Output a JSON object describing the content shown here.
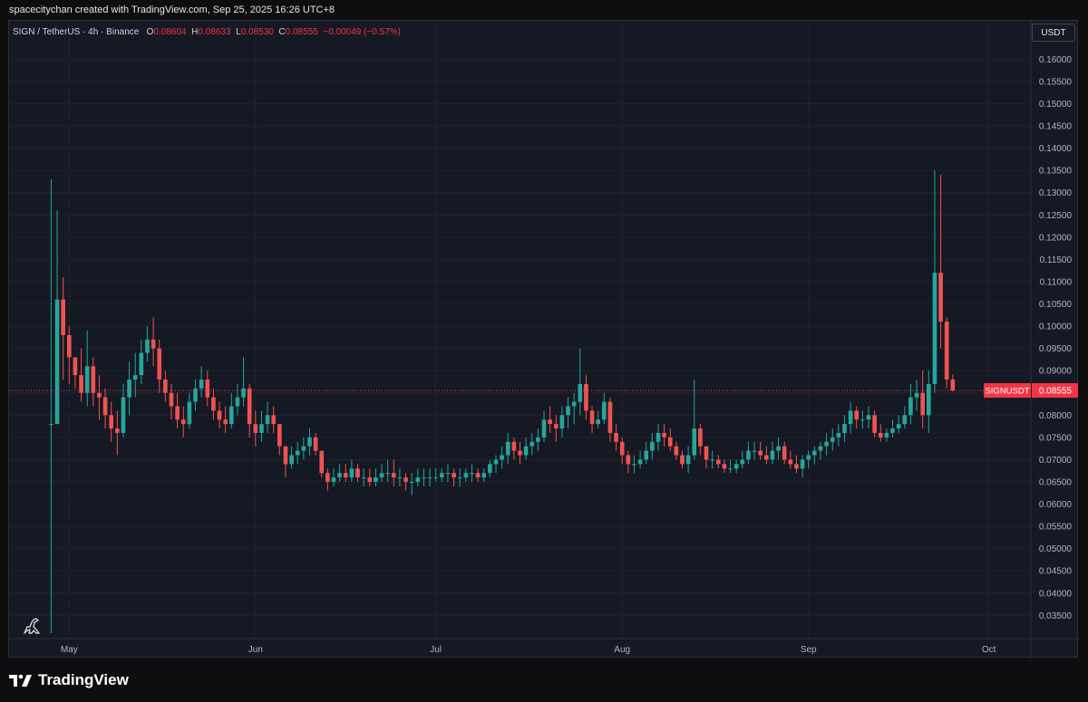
{
  "caption": "spacecitychan created with TradingView.com, Sep 25, 2025 16:26 UTC+8",
  "legend": {
    "symbol": "SIGN / TetherUS · 4h · Binance",
    "o_label": "O",
    "o_value": "0.08604",
    "h_label": "H",
    "h_value": "0.08633",
    "l_label": "L",
    "l_value": "0.08530",
    "c_label": "C",
    "c_value": "0.08555",
    "change": "−0.00049 (−0.57%)"
  },
  "currency_button": "USDT",
  "price_label": {
    "symbol": "SIGNUSDT",
    "value": "0.08555"
  },
  "brand": "TradingView",
  "colors": {
    "up": "#26a69a",
    "down": "#ef5350",
    "background": "#151924",
    "grid": "#1e222d",
    "last_price": "#f23645"
  },
  "chart_data": {
    "type": "candlestick",
    "symbol": "SIGNUSDT",
    "interval": "4h",
    "y_scale": "linear",
    "ylim": [
      0.031,
      0.167
    ],
    "y_ticks": [
      "0.16000",
      "0.15500",
      "0.15000",
      "0.14500",
      "0.14000",
      "0.13500",
      "0.13000",
      "0.12500",
      "0.12000",
      "0.11500",
      "0.11000",
      "0.10500",
      "0.10000",
      "0.09500",
      "0.09000",
      "0.08500",
      "0.08000",
      "0.07500",
      "0.07000",
      "0.06500",
      "0.06000",
      "0.05500",
      "0.05000",
      "0.04500",
      "0.04000",
      "0.03500"
    ],
    "x_ticks": [
      {
        "label": "May",
        "date": "2025-05-01"
      },
      {
        "label": "Jun",
        "date": "2025-06-01"
      },
      {
        "label": "Jul",
        "date": "2025-07-01"
      },
      {
        "label": "Aug",
        "date": "2025-08-01"
      },
      {
        "label": "Sep",
        "date": "2025-09-01"
      },
      {
        "label": "Oct",
        "date": "2025-10-01"
      }
    ],
    "xlim": [
      "2025-04-21",
      "2025-10-08"
    ],
    "last_price": 0.08555,
    "grid": true,
    "series": [
      {
        "date": "2025-04-28",
        "low": 0.031,
        "high": 0.133,
        "close": 0.078
      },
      {
        "date": "2025-04-29",
        "low": 0.085,
        "high": 0.126,
        "close": 0.106
      },
      {
        "date": "2025-04-30",
        "low": 0.088,
        "high": 0.111,
        "close": 0.098
      },
      {
        "date": "2025-05-01",
        "low": 0.087,
        "high": 0.1,
        "close": 0.093
      },
      {
        "date": "2025-05-02",
        "low": 0.086,
        "high": 0.093,
        "close": 0.089
      },
      {
        "date": "2025-05-03",
        "low": 0.083,
        "high": 0.095,
        "close": 0.085
      },
      {
        "date": "2025-05-04",
        "low": 0.082,
        "high": 0.099,
        "close": 0.091
      },
      {
        "date": "2025-05-05",
        "low": 0.082,
        "high": 0.093,
        "close": 0.085
      },
      {
        "date": "2025-05-06",
        "low": 0.079,
        "high": 0.089,
        "close": 0.084
      },
      {
        "date": "2025-05-07",
        "low": 0.077,
        "high": 0.086,
        "close": 0.08
      },
      {
        "date": "2025-05-08",
        "low": 0.074,
        "high": 0.083,
        "close": 0.077
      },
      {
        "date": "2025-05-09",
        "low": 0.071,
        "high": 0.081,
        "close": 0.076
      },
      {
        "date": "2025-05-10",
        "low": 0.075,
        "high": 0.087,
        "close": 0.084
      },
      {
        "date": "2025-05-11",
        "low": 0.08,
        "high": 0.092,
        "close": 0.088
      },
      {
        "date": "2025-05-12",
        "low": 0.084,
        "high": 0.094,
        "close": 0.089
      },
      {
        "date": "2025-05-13",
        "low": 0.087,
        "high": 0.097,
        "close": 0.094
      },
      {
        "date": "2025-05-14",
        "low": 0.092,
        "high": 0.1,
        "close": 0.097
      },
      {
        "date": "2025-05-15",
        "low": 0.091,
        "high": 0.102,
        "close": 0.095
      },
      {
        "date": "2025-05-16",
        "low": 0.085,
        "high": 0.097,
        "close": 0.088
      },
      {
        "date": "2025-05-17",
        "low": 0.083,
        "high": 0.09,
        "close": 0.085
      },
      {
        "date": "2025-05-18",
        "low": 0.079,
        "high": 0.087,
        "close": 0.082
      },
      {
        "date": "2025-05-19",
        "low": 0.077,
        "high": 0.085,
        "close": 0.079
      },
      {
        "date": "2025-05-20",
        "low": 0.075,
        "high": 0.082,
        "close": 0.078
      },
      {
        "date": "2025-05-21",
        "low": 0.077,
        "high": 0.085,
        "close": 0.083
      },
      {
        "date": "2025-05-22",
        "low": 0.081,
        "high": 0.088,
        "close": 0.086
      },
      {
        "date": "2025-05-23",
        "low": 0.084,
        "high": 0.091,
        "close": 0.088
      },
      {
        "date": "2025-05-24",
        "low": 0.082,
        "high": 0.09,
        "close": 0.084
      },
      {
        "date": "2025-05-25",
        "low": 0.079,
        "high": 0.086,
        "close": 0.081
      },
      {
        "date": "2025-05-26",
        "low": 0.077,
        "high": 0.083,
        "close": 0.079
      },
      {
        "date": "2025-05-27",
        "low": 0.076,
        "high": 0.082,
        "close": 0.078
      },
      {
        "date": "2025-05-28",
        "low": 0.077,
        "high": 0.085,
        "close": 0.082
      },
      {
        "date": "2025-05-29",
        "low": 0.08,
        "high": 0.087,
        "close": 0.084
      },
      {
        "date": "2025-05-30",
        "low": 0.082,
        "high": 0.093,
        "close": 0.086
      },
      {
        "date": "2025-05-31",
        "low": 0.075,
        "high": 0.087,
        "close": 0.078
      },
      {
        "date": "2025-06-01",
        "low": 0.073,
        "high": 0.081,
        "close": 0.076
      },
      {
        "date": "2025-06-02",
        "low": 0.074,
        "high": 0.081,
        "close": 0.078
      },
      {
        "date": "2025-06-03",
        "low": 0.076,
        "high": 0.083,
        "close": 0.08
      },
      {
        "date": "2025-06-04",
        "low": 0.076,
        "high": 0.082,
        "close": 0.078
      },
      {
        "date": "2025-06-05",
        "low": 0.071,
        "high": 0.078,
        "close": 0.073
      },
      {
        "date": "2025-06-06",
        "low": 0.066,
        "high": 0.073,
        "close": 0.069
      },
      {
        "date": "2025-06-07",
        "low": 0.068,
        "high": 0.073,
        "close": 0.071
      },
      {
        "date": "2025-06-08",
        "low": 0.069,
        "high": 0.074,
        "close": 0.072
      },
      {
        "date": "2025-06-09",
        "low": 0.07,
        "high": 0.075,
        "close": 0.073
      },
      {
        "date": "2025-06-10",
        "low": 0.071,
        "high": 0.077,
        "close": 0.075
      },
      {
        "date": "2025-06-11",
        "low": 0.071,
        "high": 0.076,
        "close": 0.072
      },
      {
        "date": "2025-06-12",
        "low": 0.066,
        "high": 0.072,
        "close": 0.067
      },
      {
        "date": "2025-06-13",
        "low": 0.063,
        "high": 0.068,
        "close": 0.065
      },
      {
        "date": "2025-06-14",
        "low": 0.064,
        "high": 0.068,
        "close": 0.066
      },
      {
        "date": "2025-06-15",
        "low": 0.065,
        "high": 0.069,
        "close": 0.067
      },
      {
        "date": "2025-06-16",
        "low": 0.065,
        "high": 0.069,
        "close": 0.066
      },
      {
        "date": "2025-06-17",
        "low": 0.065,
        "high": 0.07,
        "close": 0.068
      },
      {
        "date": "2025-06-18",
        "low": 0.065,
        "high": 0.069,
        "close": 0.066
      },
      {
        "date": "2025-06-19",
        "low": 0.064,
        "high": 0.068,
        "close": 0.066
      },
      {
        "date": "2025-06-20",
        "low": 0.064,
        "high": 0.068,
        "close": 0.065
      },
      {
        "date": "2025-06-21",
        "low": 0.064,
        "high": 0.068,
        "close": 0.066
      },
      {
        "date": "2025-06-22",
        "low": 0.065,
        "high": 0.069,
        "close": 0.067
      },
      {
        "date": "2025-06-23",
        "low": 0.065,
        "high": 0.07,
        "close": 0.067
      },
      {
        "date": "2025-06-24",
        "low": 0.064,
        "high": 0.07,
        "close": 0.066
      },
      {
        "date": "2025-06-25",
        "low": 0.064,
        "high": 0.068,
        "close": 0.066
      },
      {
        "date": "2025-06-26",
        "low": 0.063,
        "high": 0.067,
        "close": 0.065
      },
      {
        "date": "2025-06-27",
        "low": 0.062,
        "high": 0.067,
        "close": 0.065
      },
      {
        "date": "2025-06-28",
        "low": 0.064,
        "high": 0.068,
        "close": 0.066
      },
      {
        "date": "2025-06-29",
        "low": 0.064,
        "high": 0.068,
        "close": 0.066
      },
      {
        "date": "2025-06-30",
        "low": 0.064,
        "high": 0.068,
        "close": 0.066
      },
      {
        "date": "2025-07-01",
        "low": 0.065,
        "high": 0.068,
        "close": 0.066
      },
      {
        "date": "2025-07-02",
        "low": 0.065,
        "high": 0.068,
        "close": 0.067
      },
      {
        "date": "2025-07-03",
        "low": 0.065,
        "high": 0.069,
        "close": 0.067
      },
      {
        "date": "2025-07-04",
        "low": 0.064,
        "high": 0.068,
        "close": 0.066
      },
      {
        "date": "2025-07-05",
        "low": 0.064,
        "high": 0.068,
        "close": 0.066
      },
      {
        "date": "2025-07-06",
        "low": 0.065,
        "high": 0.068,
        "close": 0.067
      },
      {
        "date": "2025-07-07",
        "low": 0.065,
        "high": 0.069,
        "close": 0.067
      },
      {
        "date": "2025-07-08",
        "low": 0.065,
        "high": 0.068,
        "close": 0.066
      },
      {
        "date": "2025-07-09",
        "low": 0.065,
        "high": 0.068,
        "close": 0.067
      },
      {
        "date": "2025-07-10",
        "low": 0.066,
        "high": 0.07,
        "close": 0.069
      },
      {
        "date": "2025-07-11",
        "low": 0.067,
        "high": 0.071,
        "close": 0.07
      },
      {
        "date": "2025-07-12",
        "low": 0.068,
        "high": 0.073,
        "close": 0.071
      },
      {
        "date": "2025-07-13",
        "low": 0.069,
        "high": 0.076,
        "close": 0.074
      },
      {
        "date": "2025-07-14",
        "low": 0.07,
        "high": 0.075,
        "close": 0.072
      },
      {
        "date": "2025-07-15",
        "low": 0.069,
        "high": 0.074,
        "close": 0.071
      },
      {
        "date": "2025-07-16",
        "low": 0.07,
        "high": 0.075,
        "close": 0.073
      },
      {
        "date": "2025-07-17",
        "low": 0.071,
        "high": 0.076,
        "close": 0.074
      },
      {
        "date": "2025-07-18",
        "low": 0.072,
        "high": 0.077,
        "close": 0.075
      },
      {
        "date": "2025-07-19",
        "low": 0.074,
        "high": 0.081,
        "close": 0.079
      },
      {
        "date": "2025-07-20",
        "low": 0.076,
        "high": 0.082,
        "close": 0.078
      },
      {
        "date": "2025-07-21",
        "low": 0.074,
        "high": 0.08,
        "close": 0.077
      },
      {
        "date": "2025-07-22",
        "low": 0.075,
        "high": 0.082,
        "close": 0.08
      },
      {
        "date": "2025-07-23",
        "low": 0.077,
        "high": 0.084,
        "close": 0.082
      },
      {
        "date": "2025-07-24",
        "low": 0.078,
        "high": 0.085,
        "close": 0.083
      },
      {
        "date": "2025-07-25",
        "low": 0.08,
        "high": 0.095,
        "close": 0.087
      },
      {
        "date": "2025-07-26",
        "low": 0.079,
        "high": 0.089,
        "close": 0.081
      },
      {
        "date": "2025-07-27",
        "low": 0.076,
        "high": 0.082,
        "close": 0.078
      },
      {
        "date": "2025-07-28",
        "low": 0.077,
        "high": 0.081,
        "close": 0.079
      },
      {
        "date": "2025-07-29",
        "low": 0.078,
        "high": 0.085,
        "close": 0.083
      },
      {
        "date": "2025-07-30",
        "low": 0.074,
        "high": 0.084,
        "close": 0.076
      },
      {
        "date": "2025-07-31",
        "low": 0.072,
        "high": 0.078,
        "close": 0.074
      },
      {
        "date": "2025-08-01",
        "low": 0.069,
        "high": 0.075,
        "close": 0.071
      },
      {
        "date": "2025-08-02",
        "low": 0.067,
        "high": 0.072,
        "close": 0.069
      },
      {
        "date": "2025-08-03",
        "low": 0.067,
        "high": 0.071,
        "close": 0.069
      },
      {
        "date": "2025-08-04",
        "low": 0.068,
        "high": 0.072,
        "close": 0.07
      },
      {
        "date": "2025-08-05",
        "low": 0.069,
        "high": 0.074,
        "close": 0.072
      },
      {
        "date": "2025-08-06",
        "low": 0.07,
        "high": 0.076,
        "close": 0.074
      },
      {
        "date": "2025-08-07",
        "low": 0.072,
        "high": 0.078,
        "close": 0.076
      },
      {
        "date": "2025-08-08",
        "low": 0.073,
        "high": 0.078,
        "close": 0.075
      },
      {
        "date": "2025-08-09",
        "low": 0.072,
        "high": 0.077,
        "close": 0.073
      },
      {
        "date": "2025-08-10",
        "low": 0.07,
        "high": 0.074,
        "close": 0.071
      },
      {
        "date": "2025-08-11",
        "low": 0.068,
        "high": 0.072,
        "close": 0.069
      },
      {
        "date": "2025-08-12",
        "low": 0.067,
        "high": 0.073,
        "close": 0.071
      },
      {
        "date": "2025-08-13",
        "low": 0.07,
        "high": 0.088,
        "close": 0.077
      },
      {
        "date": "2025-08-14",
        "low": 0.071,
        "high": 0.078,
        "close": 0.073
      },
      {
        "date": "2025-08-15",
        "low": 0.068,
        "high": 0.073,
        "close": 0.07
      },
      {
        "date": "2025-08-16",
        "low": 0.068,
        "high": 0.072,
        "close": 0.07
      },
      {
        "date": "2025-08-17",
        "low": 0.068,
        "high": 0.071,
        "close": 0.069
      },
      {
        "date": "2025-08-18",
        "low": 0.067,
        "high": 0.07,
        "close": 0.068
      },
      {
        "date": "2025-08-19",
        "low": 0.067,
        "high": 0.07,
        "close": 0.068
      },
      {
        "date": "2025-08-20",
        "low": 0.067,
        "high": 0.07,
        "close": 0.069
      },
      {
        "date": "2025-08-21",
        "low": 0.068,
        "high": 0.072,
        "close": 0.07
      },
      {
        "date": "2025-08-22",
        "low": 0.069,
        "high": 0.074,
        "close": 0.072
      },
      {
        "date": "2025-08-23",
        "low": 0.07,
        "high": 0.074,
        "close": 0.072
      },
      {
        "date": "2025-08-24",
        "low": 0.07,
        "high": 0.074,
        "close": 0.071
      },
      {
        "date": "2025-08-25",
        "low": 0.069,
        "high": 0.073,
        "close": 0.07
      },
      {
        "date": "2025-08-26",
        "low": 0.069,
        "high": 0.074,
        "close": 0.072
      },
      {
        "date": "2025-08-27",
        "low": 0.07,
        "high": 0.075,
        "close": 0.073
      },
      {
        "date": "2025-08-28",
        "low": 0.069,
        "high": 0.074,
        "close": 0.07
      },
      {
        "date": "2025-08-29",
        "low": 0.068,
        "high": 0.072,
        "close": 0.069
      },
      {
        "date": "2025-08-30",
        "low": 0.067,
        "high": 0.071,
        "close": 0.068
      },
      {
        "date": "2025-08-31",
        "low": 0.066,
        "high": 0.071,
        "close": 0.07
      },
      {
        "date": "2025-09-01",
        "low": 0.068,
        "high": 0.072,
        "close": 0.071
      },
      {
        "date": "2025-09-02",
        "low": 0.069,
        "high": 0.073,
        "close": 0.072
      },
      {
        "date": "2025-09-03",
        "low": 0.07,
        "high": 0.074,
        "close": 0.073
      },
      {
        "date": "2025-09-04",
        "low": 0.071,
        "high": 0.076,
        "close": 0.074
      },
      {
        "date": "2025-09-05",
        "low": 0.072,
        "high": 0.077,
        "close": 0.075
      },
      {
        "date": "2025-09-06",
        "low": 0.073,
        "high": 0.078,
        "close": 0.076
      },
      {
        "date": "2025-09-07",
        "low": 0.074,
        "high": 0.08,
        "close": 0.078
      },
      {
        "date": "2025-09-08",
        "low": 0.076,
        "high": 0.083,
        "close": 0.081
      },
      {
        "date": "2025-09-09",
        "low": 0.077,
        "high": 0.082,
        "close": 0.079
      },
      {
        "date": "2025-09-10",
        "low": 0.077,
        "high": 0.081,
        "close": 0.079
      },
      {
        "date": "2025-09-11",
        "low": 0.077,
        "high": 0.082,
        "close": 0.08
      },
      {
        "date": "2025-09-12",
        "low": 0.075,
        "high": 0.081,
        "close": 0.076
      },
      {
        "date": "2025-09-13",
        "low": 0.074,
        "high": 0.078,
        "close": 0.075
      },
      {
        "date": "2025-09-14",
        "low": 0.074,
        "high": 0.077,
        "close": 0.076
      },
      {
        "date": "2025-09-15",
        "low": 0.075,
        "high": 0.079,
        "close": 0.077
      },
      {
        "date": "2025-09-16",
        "low": 0.076,
        "high": 0.08,
        "close": 0.078
      },
      {
        "date": "2025-09-17",
        "low": 0.077,
        "high": 0.082,
        "close": 0.08
      },
      {
        "date": "2025-09-18",
        "low": 0.078,
        "high": 0.087,
        "close": 0.084
      },
      {
        "date": "2025-09-19",
        "low": 0.081,
        "high": 0.088,
        "close": 0.085
      },
      {
        "date": "2025-09-20",
        "low": 0.077,
        "high": 0.09,
        "close": 0.08
      },
      {
        "date": "2025-09-21",
        "low": 0.076,
        "high": 0.09,
        "close": 0.087
      },
      {
        "date": "2025-09-22",
        "low": 0.085,
        "high": 0.135,
        "close": 0.112
      },
      {
        "date": "2025-09-23",
        "low": 0.095,
        "high": 0.134,
        "close": 0.101
      },
      {
        "date": "2025-09-24",
        "low": 0.086,
        "high": 0.102,
        "close": 0.088
      },
      {
        "date": "2025-09-25",
        "low": 0.0853,
        "high": 0.0891,
        "close": 0.08555
      }
    ]
  }
}
